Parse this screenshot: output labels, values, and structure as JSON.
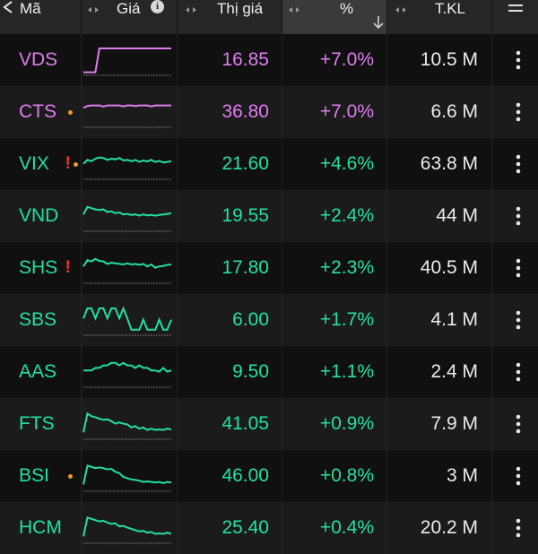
{
  "header": {
    "symbol": "Mã",
    "price": "Giá",
    "market_price": "Thị giá",
    "percent": "%",
    "volume": "T.KL"
  },
  "rows": [
    {
      "symbol": "VDS",
      "warn": false,
      "dot": false,
      "price": "16.85",
      "pct": "+7.0%",
      "vol": "10.5 M",
      "color": "#e07cf0",
      "spark": [
        0.05,
        0.05,
        0.05,
        0.05,
        1,
        1,
        1,
        1,
        1,
        1,
        1,
        1,
        1,
        1,
        1,
        1,
        1,
        1,
        1,
        1,
        1,
        1,
        1
      ]
    },
    {
      "symbol": "CTS",
      "warn": false,
      "dot": true,
      "price": "36.80",
      "pct": "+7.0%",
      "vol": "6.6 M",
      "color": "#e07cf0",
      "spark": [
        0.7,
        0.78,
        0.8,
        0.8,
        0.8,
        0.75,
        0.8,
        0.8,
        0.8,
        0.8,
        0.76,
        0.8,
        0.8,
        0.78,
        0.8,
        0.8,
        0.8,
        0.76,
        0.8,
        0.8,
        0.8,
        0.8,
        0.8
      ]
    },
    {
      "symbol": "VIX",
      "warn": true,
      "dot": true,
      "price": "21.60",
      "pct": "+4.6%",
      "vol": "63.8 M",
      "color": "#22e0a0",
      "spark": [
        0.55,
        0.7,
        0.65,
        0.75,
        0.8,
        0.78,
        0.7,
        0.75,
        0.72,
        0.78,
        0.68,
        0.7,
        0.65,
        0.7,
        0.62,
        0.68,
        0.64,
        0.7,
        0.62,
        0.66,
        0.6,
        0.62,
        0.65
      ]
    },
    {
      "symbol": "VND",
      "warn": false,
      "dot": false,
      "price": "19.55",
      "pct": "+2.4%",
      "vol": "44 M",
      "color": "#22e0a0",
      "spark": [
        0.6,
        0.9,
        0.85,
        0.8,
        0.78,
        0.8,
        0.7,
        0.72,
        0.65,
        0.68,
        0.6,
        0.62,
        0.58,
        0.6,
        0.55,
        0.6,
        0.56,
        0.58,
        0.55,
        0.58,
        0.6,
        0.62,
        0.65
      ]
    },
    {
      "symbol": "SHS",
      "warn": true,
      "dot": false,
      "price": "17.80",
      "pct": "+2.3%",
      "vol": "40.5 M",
      "color": "#22e0a0",
      "spark": [
        0.6,
        0.85,
        0.8,
        0.9,
        0.82,
        0.8,
        0.7,
        0.75,
        0.72,
        0.7,
        0.68,
        0.72,
        0.68,
        0.7,
        0.66,
        0.7,
        0.6,
        0.68,
        0.55,
        0.6,
        0.62,
        0.66,
        0.68
      ]
    },
    {
      "symbol": "SBS",
      "warn": false,
      "dot": false,
      "price": "6.00",
      "pct": "+1.7%",
      "vol": "4.1 M",
      "color": "#22e0a0",
      "spark": [
        0.6,
        1,
        1,
        0.6,
        1,
        1,
        0.6,
        1,
        1,
        0.6,
        1,
        0.6,
        0.15,
        0.15,
        0.15,
        0.55,
        0.15,
        0.15,
        0.15,
        0.55,
        0.15,
        0.15,
        0.55
      ]
    },
    {
      "symbol": "AAS",
      "warn": false,
      "dot": false,
      "price": "9.50",
      "pct": "+1.1%",
      "vol": "2.4 M",
      "color": "#22e0a0",
      "spark": [
        0.6,
        0.6,
        0.6,
        0.7,
        0.7,
        0.8,
        0.8,
        0.9,
        0.9,
        0.8,
        0.9,
        0.8,
        0.8,
        0.7,
        0.8,
        0.7,
        0.7,
        0.6,
        0.6,
        0.55,
        0.7,
        0.55,
        0.6
      ]
    },
    {
      "symbol": "FTS",
      "warn": false,
      "dot": false,
      "price": "41.05",
      "pct": "+0.9%",
      "vol": "7.9 M",
      "color": "#22e0a0",
      "spark": [
        0.2,
        0.95,
        0.85,
        0.8,
        0.75,
        0.7,
        0.72,
        0.65,
        0.55,
        0.6,
        0.55,
        0.52,
        0.4,
        0.45,
        0.35,
        0.4,
        0.3,
        0.35,
        0.3,
        0.32,
        0.3,
        0.35,
        0.32
      ]
    },
    {
      "symbol": "BSI",
      "warn": false,
      "dot": true,
      "price": "46.00",
      "pct": "+0.8%",
      "vol": "3 M",
      "color": "#22e0a0",
      "spark": [
        0.2,
        0.95,
        0.9,
        0.85,
        0.88,
        0.85,
        0.8,
        0.82,
        0.7,
        0.65,
        0.5,
        0.45,
        0.4,
        0.38,
        0.35,
        0.3,
        0.32,
        0.3,
        0.28,
        0.3,
        0.25,
        0.3,
        0.28
      ]
    },
    {
      "symbol": "HCM",
      "warn": false,
      "dot": false,
      "price": "25.40",
      "pct": "+0.4%",
      "vol": "20.2 M",
      "color": "#22e0a0",
      "spark": [
        0.2,
        0.95,
        0.9,
        0.85,
        0.8,
        0.82,
        0.75,
        0.7,
        0.72,
        0.6,
        0.62,
        0.55,
        0.5,
        0.45,
        0.4,
        0.42,
        0.35,
        0.38,
        0.3,
        0.32,
        0.3,
        0.35,
        0.3
      ]
    }
  ]
}
